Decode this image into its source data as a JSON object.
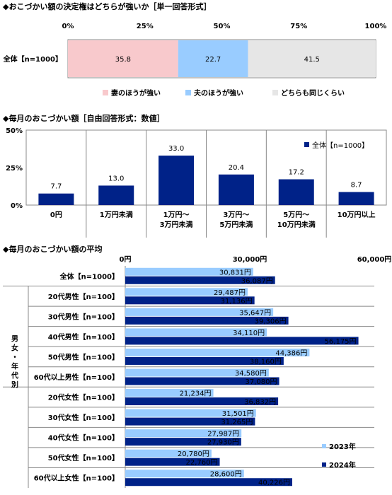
{
  "chart_data": [
    {
      "type": "bar",
      "stacked": true,
      "orientation": "horizontal",
      "title": "◆おこづかい額の決定権はどちらが強いか［単一回答形式］",
      "ticks": [
        "0%",
        "25%",
        "50%",
        "75%",
        "100%"
      ],
      "xlim": [
        0,
        100
      ],
      "categories": [
        "全体【n=1000】"
      ],
      "series": [
        {
          "name": "妻のほうが強い",
          "values": [
            35.8
          ],
          "labels": [
            "35.8"
          ],
          "color": "#f8c9cc"
        },
        {
          "name": "夫のほうが強い",
          "values": [
            22.7
          ],
          "labels": [
            "22.7"
          ],
          "color": "#99ccff"
        },
        {
          "name": "どちらも同じくらい",
          "values": [
            41.5
          ],
          "labels": [
            "41.5"
          ],
          "color": "#e6e6e6"
        }
      ],
      "legend": "bottom"
    },
    {
      "type": "bar",
      "title": "◆毎月のおこづかい額［自由回答形式：数値］",
      "yticks": [
        "0%",
        "25%",
        "50%"
      ],
      "ylim": [
        0,
        50
      ],
      "categories": [
        [
          "0円"
        ],
        [
          "1万円未満"
        ],
        [
          "1万円～",
          "3万円未満"
        ],
        [
          "3万円～",
          "5万円未満"
        ],
        [
          "5万円～",
          "10万円未満"
        ],
        [
          "10万円以上"
        ]
      ],
      "series": [
        {
          "name": "全体【n=1000】",
          "values": [
            7.7,
            13.0,
            33.0,
            20.4,
            17.2,
            8.7
          ],
          "labels": [
            "7.7",
            "13.0",
            "33.0",
            "20.4",
            "17.2",
            "8.7"
          ],
          "color": "#002288"
        }
      ],
      "legend": "top-right",
      "grid": false
    },
    {
      "type": "bar",
      "orientation": "horizontal",
      "title": "◆毎月のおこづかい額の平均",
      "xticks": [
        "0円",
        "30,000円",
        "60,000円"
      ],
      "xlim": [
        0,
        60000
      ],
      "group_label": "男女・年代別",
      "categories": [
        "全体【n=1000】",
        "20代男性【n=100】",
        "30代男性【n=100】",
        "40代男性【n=100】",
        "50代男性【n=100】",
        "60代以上男性【n=100】",
        "20代女性【n=100】",
        "30代女性【n=100】",
        "40代女性【n=100】",
        "50代女性【n=100】",
        "60代以上女性【n=100】"
      ],
      "series": [
        {
          "name": "2023年",
          "color": "#99ccff",
          "values": [
            30831,
            29487,
            35647,
            34110,
            44386,
            34580,
            21234,
            31501,
            27987,
            20780,
            28600
          ],
          "labels": [
            "30,831円",
            "29,487円",
            "35,647円",
            "34,110円",
            "44,386円",
            "34,580円",
            "21,234円",
            "31,501円",
            "27,987円",
            "20,780円",
            "28,600円"
          ]
        },
        {
          "name": "2024年",
          "color": "#002288",
          "values": [
            36087,
            31136,
            39306,
            56175,
            38160,
            37080,
            36832,
            31265,
            27930,
            22760,
            40226
          ],
          "labels": [
            "36,087円",
            "31,136円",
            "39,306円",
            "56,175円",
            "38,160円",
            "37,080円",
            "36,832円",
            "31,265円",
            "27,930円",
            "22,760円",
            "40,226円"
          ]
        }
      ],
      "legend": "bottom-right"
    }
  ]
}
